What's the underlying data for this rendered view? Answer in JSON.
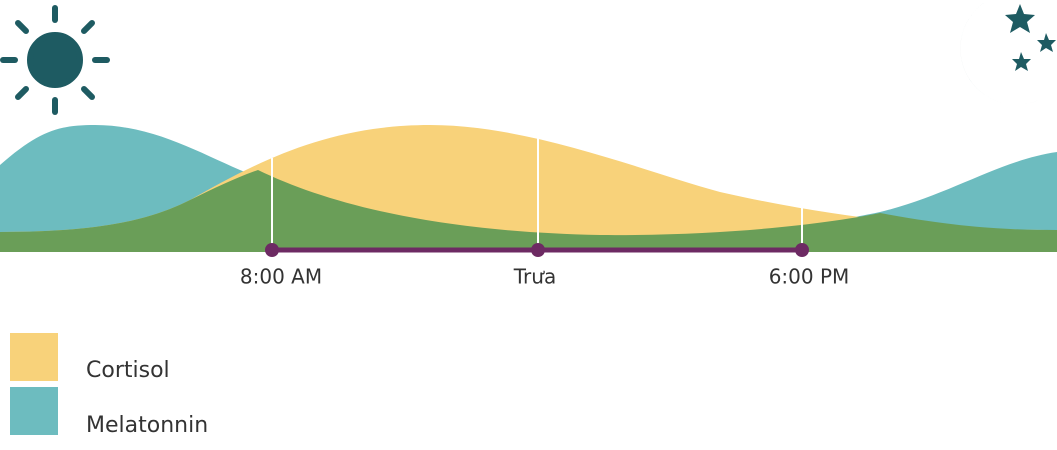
{
  "timeline": {
    "labels": [
      "8:00 AM",
      "Trưa",
      "6:00 PM"
    ]
  },
  "legend": {
    "items": [
      {
        "label": "Cortisol",
        "color": "#f8d27a"
      },
      {
        "label": "Melatonnin",
        "color": "#6dbcbf"
      }
    ]
  }
}
